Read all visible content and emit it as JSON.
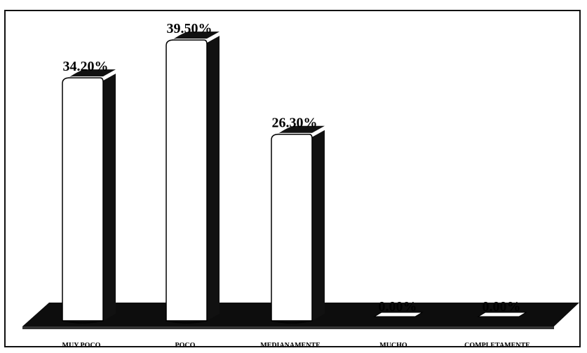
{
  "chart_data": {
    "type": "bar",
    "title": "",
    "xlabel": "",
    "ylabel": "",
    "categories": [
      "MUY POCO",
      "POCO",
      "MEDIANAMENTE",
      "MUCHO",
      "COMPLETAMENTE"
    ],
    "values": [
      34.2,
      39.5,
      26.3,
      0.0,
      0.0
    ],
    "value_labels": [
      "34.20%",
      "39.50%",
      "26.30%",
      "0.00%",
      "0.00%"
    ],
    "ylim": [
      0,
      40
    ],
    "style": "3d-cylinder",
    "grid": false,
    "legend": "none",
    "colors": {
      "bar_face": "#ffffff",
      "bar_shadow": "#111111",
      "floor": "#0d0d0d",
      "text": "#000000"
    }
  }
}
